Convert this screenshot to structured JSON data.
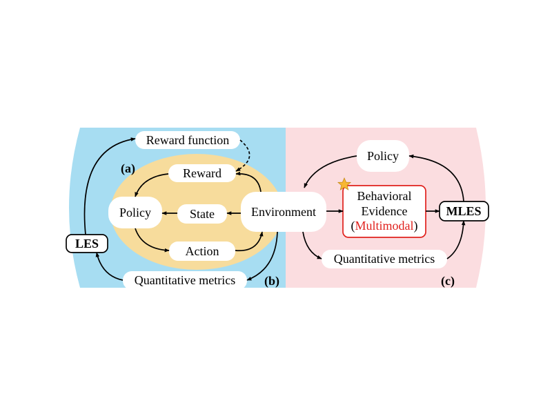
{
  "panels": {
    "a": "(a)",
    "b": "(b)",
    "c": "(c)"
  },
  "left": {
    "reward_function": "Reward function",
    "reward": "Reward",
    "policy": "Policy",
    "state": "State",
    "action": "Action",
    "environment": "Environment",
    "quantitative_metrics": "Quantitative metrics",
    "les": "LES"
  },
  "right": {
    "policy": "Policy",
    "behavioral_line1": "Behavioral",
    "behavioral_line2": "Evidence",
    "multimodal_open": "(",
    "multimodal": "Multimodal",
    "multimodal_close": ")",
    "mles": "MLES",
    "quantitative_metrics": "Quantitative metrics"
  },
  "colors": {
    "left_bg": "#a7ddf2",
    "right_bg": "#fbdde0",
    "ellipse": "#f7dc9c",
    "evidence_border": "#e0201c",
    "multimodal_text": "#e0201c",
    "star": "#f7b733"
  },
  "icons": {
    "star": "star-icon"
  }
}
